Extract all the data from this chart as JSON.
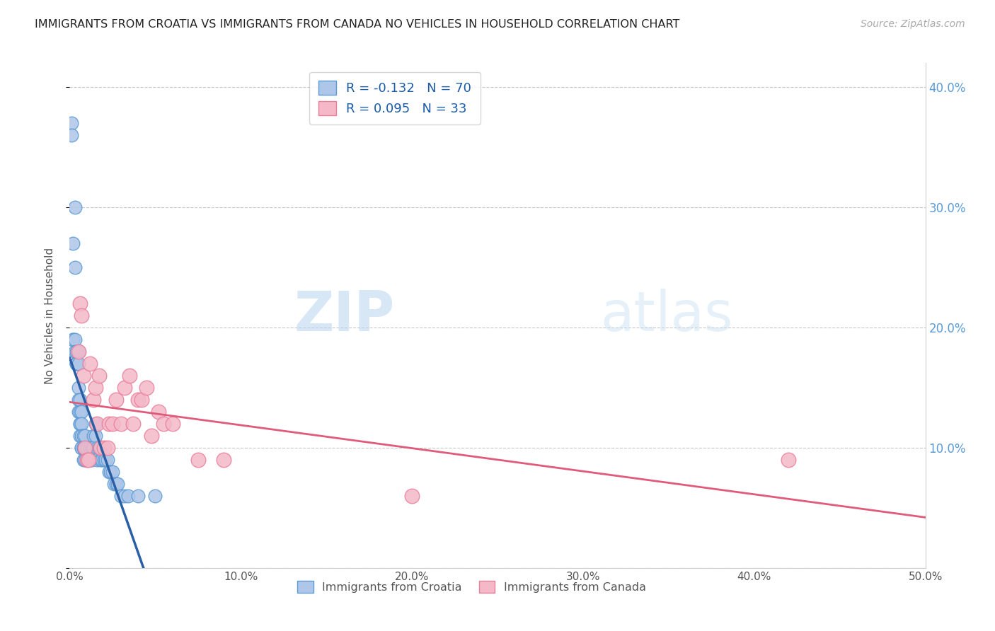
{
  "title": "IMMIGRANTS FROM CROATIA VS IMMIGRANTS FROM CANADA NO VEHICLES IN HOUSEHOLD CORRELATION CHART",
  "source": "Source: ZipAtlas.com",
  "ylabel": "No Vehicles in Household",
  "xlim": [
    0.0,
    0.5
  ],
  "ylim": [
    0.0,
    0.42
  ],
  "xticks": [
    0.0,
    0.1,
    0.2,
    0.3,
    0.4,
    0.5
  ],
  "yticks": [
    0.0,
    0.1,
    0.2,
    0.3,
    0.4
  ],
  "xtick_labels": [
    "0.0%",
    "10.0%",
    "20.0%",
    "30.0%",
    "40.0%",
    "50.0%"
  ],
  "ytick_labels_right": [
    "",
    "10.0%",
    "20.0%",
    "30.0%",
    "40.0%"
  ],
  "grid_color": "#c8c8c8",
  "background_color": "#ffffff",
  "croatia_color": "#aec6e8",
  "canada_color": "#f4b8c8",
  "croatia_edge_color": "#5b9bd5",
  "canada_edge_color": "#e87f9a",
  "trend_croatia_color": "#2a5fa5",
  "trend_canada_color": "#e05a7a",
  "R_croatia": -0.132,
  "N_croatia": 70,
  "R_canada": 0.095,
  "N_canada": 33,
  "croatia_x": [
    0.001,
    0.001,
    0.002,
    0.002,
    0.002,
    0.003,
    0.003,
    0.003,
    0.003,
    0.004,
    0.004,
    0.004,
    0.004,
    0.005,
    0.005,
    0.005,
    0.005,
    0.005,
    0.006,
    0.006,
    0.006,
    0.006,
    0.006,
    0.007,
    0.007,
    0.007,
    0.007,
    0.007,
    0.008,
    0.008,
    0.008,
    0.008,
    0.009,
    0.009,
    0.009,
    0.01,
    0.01,
    0.01,
    0.01,
    0.011,
    0.011,
    0.012,
    0.012,
    0.012,
    0.013,
    0.013,
    0.014,
    0.014,
    0.015,
    0.015,
    0.016,
    0.016,
    0.017,
    0.018,
    0.018,
    0.019,
    0.02,
    0.021,
    0.022,
    0.023,
    0.024,
    0.025,
    0.026,
    0.027,
    0.028,
    0.03,
    0.032,
    0.034,
    0.04,
    0.05
  ],
  "croatia_y": [
    0.37,
    0.36,
    0.27,
    0.19,
    0.19,
    0.3,
    0.25,
    0.19,
    0.18,
    0.18,
    0.17,
    0.17,
    0.17,
    0.18,
    0.17,
    0.15,
    0.14,
    0.13,
    0.14,
    0.13,
    0.12,
    0.12,
    0.11,
    0.13,
    0.12,
    0.11,
    0.1,
    0.1,
    0.11,
    0.1,
    0.1,
    0.09,
    0.11,
    0.1,
    0.09,
    0.1,
    0.1,
    0.09,
    0.09,
    0.09,
    0.09,
    0.1,
    0.09,
    0.09,
    0.1,
    0.09,
    0.11,
    0.1,
    0.12,
    0.11,
    0.1,
    0.09,
    0.1,
    0.1,
    0.09,
    0.09,
    0.09,
    0.09,
    0.09,
    0.08,
    0.08,
    0.08,
    0.07,
    0.07,
    0.07,
    0.06,
    0.06,
    0.06,
    0.06,
    0.06
  ],
  "canada_x": [
    0.005,
    0.006,
    0.007,
    0.008,
    0.009,
    0.01,
    0.011,
    0.012,
    0.014,
    0.015,
    0.016,
    0.017,
    0.018,
    0.02,
    0.022,
    0.023,
    0.025,
    0.027,
    0.03,
    0.032,
    0.035,
    0.037,
    0.04,
    0.042,
    0.045,
    0.048,
    0.052,
    0.055,
    0.06,
    0.075,
    0.09,
    0.2,
    0.42
  ],
  "canada_y": [
    0.18,
    0.22,
    0.21,
    0.16,
    0.1,
    0.09,
    0.09,
    0.17,
    0.14,
    0.15,
    0.12,
    0.16,
    0.1,
    0.1,
    0.1,
    0.12,
    0.12,
    0.14,
    0.12,
    0.15,
    0.16,
    0.12,
    0.14,
    0.14,
    0.15,
    0.11,
    0.13,
    0.12,
    0.12,
    0.09,
    0.09,
    0.06,
    0.09
  ]
}
